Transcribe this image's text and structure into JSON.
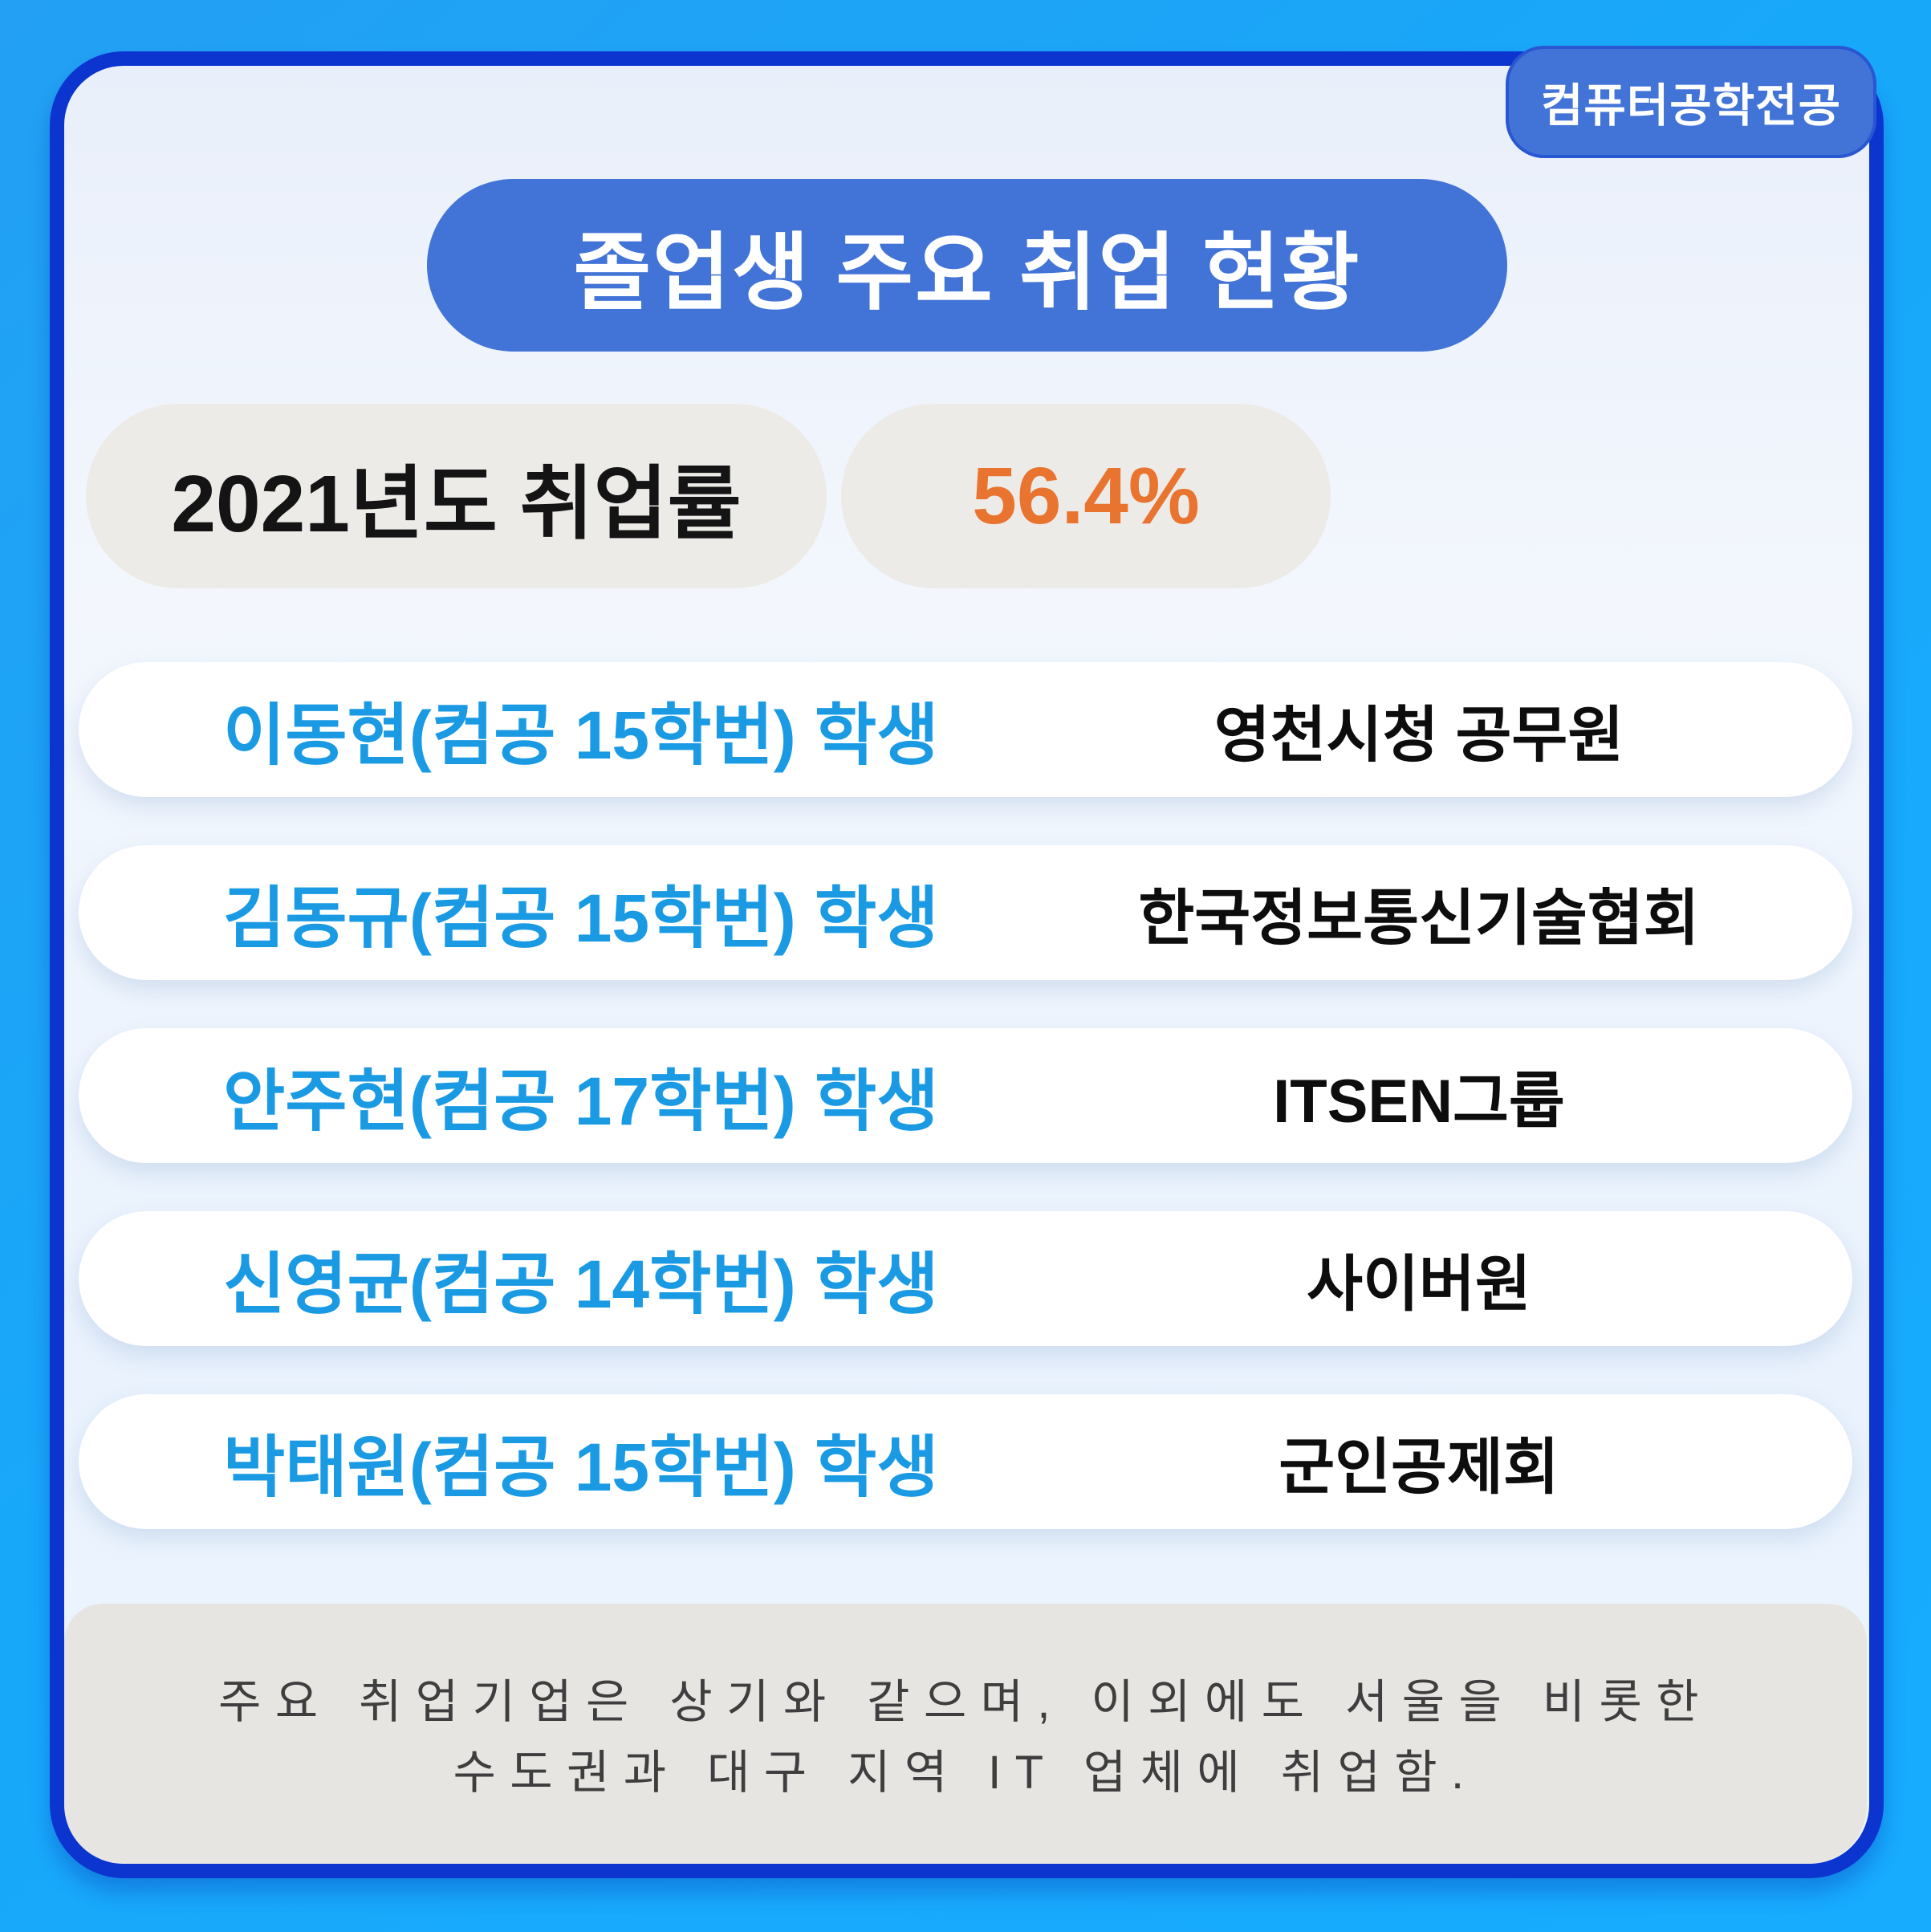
{
  "badge": {
    "label": "컴퓨터공학전공"
  },
  "header": {
    "title": "졸업생 주요 취업 현황"
  },
  "employment_rate": {
    "year_label": "2021년도 취업률",
    "value": "56.4%"
  },
  "graduates": [
    {
      "student": "이동현(컴공 15학번) 학생",
      "employer": "영천시청 공무원"
    },
    {
      "student": "김동규(컴공 15학번) 학생",
      "employer": "한국정보통신기술협회"
    },
    {
      "student": "안주현(컴공 17학번) 학생",
      "employer": "ITSEN그룹"
    },
    {
      "student": "신영균(컴공 14학번) 학생",
      "employer": "사이버원"
    },
    {
      "student": "박태원(컴공 15학번) 학생",
      "employer": "군인공제회"
    }
  ],
  "footnote": {
    "line1": "주요 취업기업은 상기와 같으며, 이외에도 서울을 비롯한",
    "line2": "수도권과 대구 지역 IT 업체에 취업함."
  },
  "colors": {
    "background_blue": "#17acfe",
    "card_border_navy": "#0c35cf",
    "accent_blue": "#4273d6",
    "student_name_blue": "#1b9ae4",
    "rate_orange": "#e8742f",
    "pill_gray": "#edebe8",
    "footnote_gray": "#e7e5e2"
  }
}
